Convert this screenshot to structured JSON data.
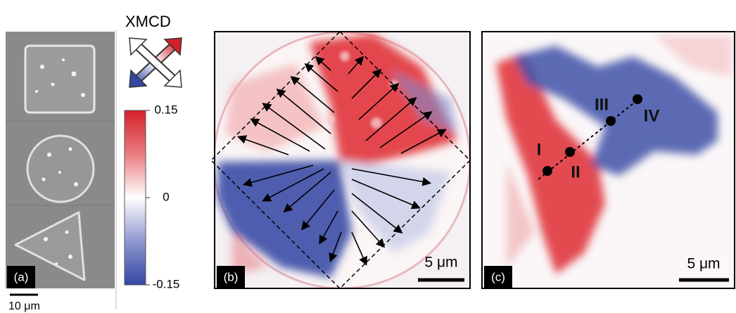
{
  "panel_a": {
    "label": "(a)",
    "scale_bar": "10 μm"
  },
  "colorbar": {
    "title": "XMCD",
    "ticks": [
      0.15,
      0,
      -0.15
    ]
  },
  "panel_b": {
    "label": "(b)",
    "scale_bar": "5 μm"
  },
  "panel_c": {
    "label": "(c)",
    "scale_bar": "5 μm",
    "points": [
      "I",
      "II",
      "III",
      "IV"
    ]
  }
}
